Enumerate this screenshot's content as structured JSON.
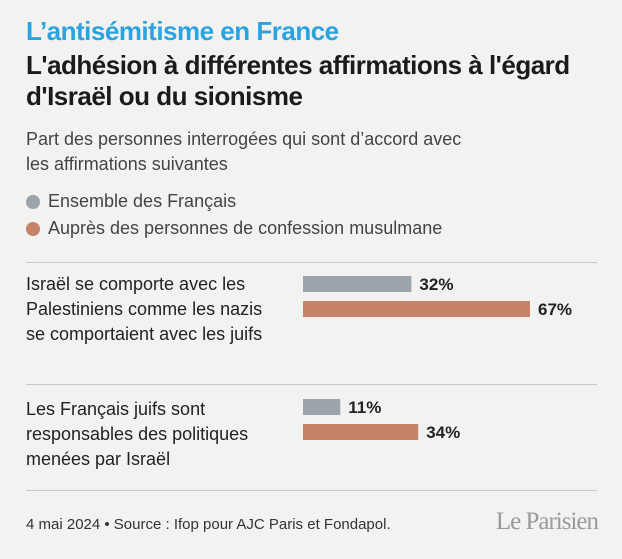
{
  "header": {
    "kicker": "L’antisémitisme en France",
    "title": "L'adhésion à différentes affirmations à l'égard d'Israël ou du sionisme",
    "subtitle": "Part des personnes interrogées qui sont d’accord avec les affirmations suivantes"
  },
  "chart_data": {
    "type": "bar",
    "orientation": "horizontal",
    "categories": [
      "Israël se comporte avec les Palestiniens comme les nazis se comportaient avec les juifs",
      "Les Français juifs sont responsables des politiques menées par Israël"
    ],
    "series": [
      {
        "name": "Ensemble des Français",
        "color": "#9ba4aa",
        "values": [
          32,
          11
        ],
        "labels": [
          "32%",
          "11%"
        ]
      },
      {
        "name": "Auprès des personnes de confession musulmane",
        "color": "#c5836a",
        "values": [
          67,
          34
        ],
        "labels": [
          "67%",
          "34%"
        ]
      }
    ],
    "unit": "%",
    "xlim": [
      0,
      100
    ],
    "grid": false,
    "legend_position": "top-left"
  },
  "footer": {
    "source": "4 mai 2024 • Source : Ifop pour AJC Paris et Fondapol.",
    "logo": "Le Parisien"
  }
}
